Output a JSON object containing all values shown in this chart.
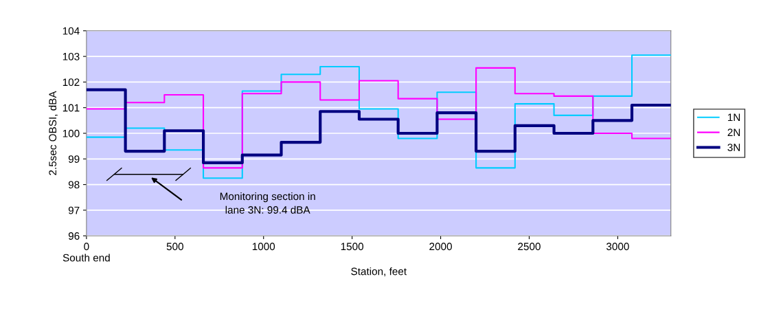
{
  "chart_data": {
    "type": "step",
    "xlabel": "Station, feet",
    "ylabel": "2.5sec OBSI, dBA",
    "x": [
      0,
      220,
      440,
      660,
      880,
      1100,
      1320,
      1540,
      1760,
      1980,
      2200,
      2420,
      2640,
      2860,
      3080,
      3300
    ],
    "series": [
      {
        "name": "1N",
        "color": "#00ccff",
        "values": [
          99.85,
          100.2,
          99.35,
          98.25,
          101.65,
          102.3,
          102.6,
          100.95,
          99.8,
          101.6,
          98.65,
          101.15,
          100.7,
          101.45,
          103.05,
          103.05
        ]
      },
      {
        "name": "2N",
        "color": "#ff00ff",
        "values": [
          100.95,
          101.2,
          101.5,
          98.65,
          101.55,
          102.0,
          101.3,
          102.05,
          101.35,
          100.55,
          102.55,
          101.55,
          101.45,
          100.0,
          99.8,
          99.8
        ]
      },
      {
        "name": "3N",
        "color": "#000080",
        "values": [
          101.7,
          99.3,
          100.1,
          98.85,
          99.15,
          99.65,
          100.85,
          100.55,
          100.0,
          100.8,
          99.3,
          100.3,
          100.0,
          100.5,
          101.1,
          101.1
        ]
      }
    ],
    "xlim": [
      0,
      3300
    ],
    "xticks": [
      {
        "value": 0,
        "label": "0\nSouth end"
      },
      500,
      1000,
      1500,
      2000,
      2500,
      3000
    ],
    "ylim": [
      96,
      104
    ],
    "yticks": [
      96,
      97,
      98,
      99,
      100,
      101,
      102,
      103,
      104
    ],
    "grid": "y",
    "legend": "right",
    "annotations": [
      "Monitoring section in\nlane 3N: 99.4 dBA"
    ]
  }
}
